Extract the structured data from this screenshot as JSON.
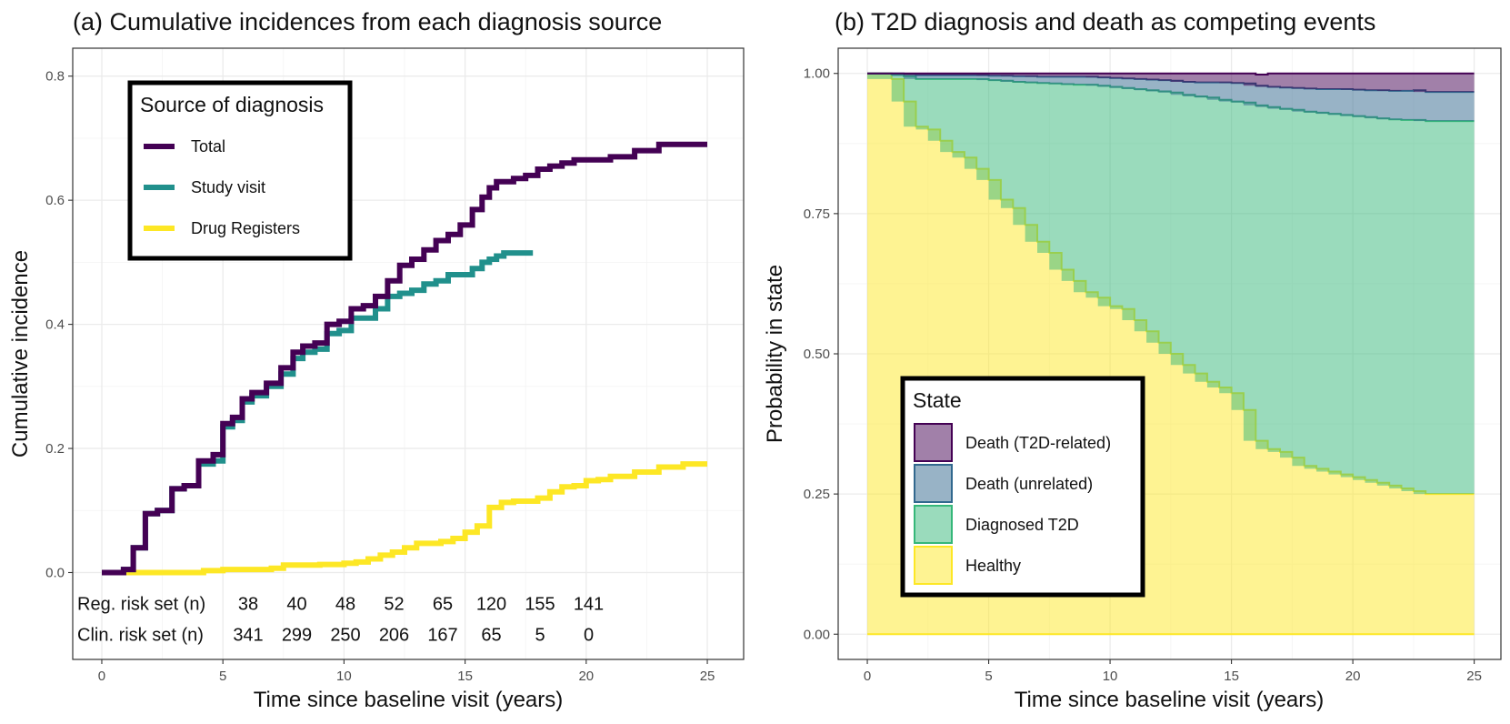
{
  "chart_data": [
    {
      "type": "line",
      "title": "(a) Cumulative incidences from each diagnosis source",
      "xlabel": "Time since baseline visit (years)",
      "ylabel": "Cumulative incidence",
      "xlim": [
        -1.2,
        26.5
      ],
      "ylim": [
        -0.14,
        0.845
      ],
      "xticks": [
        0,
        5,
        10,
        15,
        20,
        25
      ],
      "yticks": [
        0.0,
        0.2,
        0.4,
        0.6,
        0.8
      ],
      "ytick_labels": [
        "0.0",
        "0.2",
        "0.4",
        "0.6",
        "0.8"
      ],
      "grid": true,
      "legend": {
        "title": "Source of diagnosis",
        "position": "top-left"
      },
      "series": [
        {
          "name": "Total",
          "color": "#440154",
          "x": [
            0,
            0.5,
            0.9,
            1.3,
            1.8,
            2.3,
            2.9,
            3.4,
            4.0,
            4.6,
            5.0,
            5.4,
            5.8,
            6.2,
            6.8,
            7.4,
            7.9,
            8.3,
            8.8,
            9.3,
            9.8,
            10.3,
            10.8,
            11.3,
            11.8,
            12.3,
            12.8,
            13.3,
            13.8,
            14.3,
            14.8,
            15.3,
            15.7,
            16.0,
            16.3,
            16.6,
            17.0,
            17.5,
            18.0,
            18.5,
            19.0,
            19.5,
            20.0,
            21.0,
            22.0,
            23.0,
            24.0,
            25.0
          ],
          "y": [
            0.0,
            0.0,
            0.005,
            0.04,
            0.095,
            0.1,
            0.135,
            0.14,
            0.18,
            0.19,
            0.24,
            0.25,
            0.28,
            0.29,
            0.305,
            0.33,
            0.355,
            0.365,
            0.37,
            0.4,
            0.405,
            0.425,
            0.43,
            0.445,
            0.47,
            0.495,
            0.505,
            0.52,
            0.535,
            0.545,
            0.56,
            0.585,
            0.605,
            0.62,
            0.63,
            0.63,
            0.635,
            0.64,
            0.65,
            0.655,
            0.66,
            0.665,
            0.665,
            0.67,
            0.68,
            0.69,
            0.69,
            0.69
          ]
        },
        {
          "name": "Study visit",
          "color": "#21908C",
          "x": [
            0,
            0.5,
            0.9,
            1.3,
            1.8,
            2.3,
            2.9,
            3.4,
            4.0,
            4.6,
            5.0,
            5.4,
            5.8,
            6.2,
            6.8,
            7.4,
            7.9,
            8.3,
            8.8,
            9.3,
            9.8,
            10.3,
            10.8,
            11.3,
            11.8,
            12.3,
            12.8,
            13.3,
            13.8,
            14.3,
            14.8,
            15.3,
            15.7,
            16.0,
            16.3,
            16.6,
            17.0,
            17.8
          ],
          "y": [
            0.0,
            0.0,
            0.005,
            0.04,
            0.095,
            0.1,
            0.135,
            0.14,
            0.175,
            0.18,
            0.235,
            0.245,
            0.275,
            0.285,
            0.3,
            0.32,
            0.345,
            0.355,
            0.36,
            0.385,
            0.39,
            0.41,
            0.41,
            0.425,
            0.445,
            0.45,
            0.455,
            0.465,
            0.47,
            0.48,
            0.48,
            0.49,
            0.5,
            0.505,
            0.51,
            0.515,
            0.515,
            0.515
          ]
        },
        {
          "name": "Drug Registers",
          "color": "#FDE725",
          "x": [
            0,
            2.0,
            3.5,
            4.2,
            5.0,
            6.0,
            7.0,
            7.5,
            8.0,
            9.0,
            10.0,
            10.5,
            11.0,
            11.5,
            12.0,
            12.5,
            13.0,
            14.0,
            14.5,
            15.0,
            15.5,
            16.0,
            16.5,
            17.0,
            18.0,
            18.5,
            19.0,
            19.5,
            20.0,
            20.5,
            21.0,
            22.0,
            23.0,
            24.0,
            25.0
          ],
          "y": [
            0.0,
            0.0,
            0.0,
            0.003,
            0.005,
            0.005,
            0.007,
            0.012,
            0.012,
            0.013,
            0.015,
            0.017,
            0.022,
            0.028,
            0.033,
            0.04,
            0.047,
            0.05,
            0.055,
            0.065,
            0.075,
            0.105,
            0.113,
            0.115,
            0.12,
            0.13,
            0.138,
            0.14,
            0.148,
            0.15,
            0.155,
            0.162,
            0.17,
            0.175,
            0.175
          ]
        }
      ],
      "risk_table": {
        "rows": [
          {
            "label": "Reg. risk set (n)",
            "values": [
              "38",
              "40",
              "48",
              "52",
              "65",
              "120",
              "155",
              "141"
            ]
          },
          {
            "label": "Clin. risk set (n)",
            "values": [
              "341",
              "299",
              "250",
              "206",
              "167",
              "65",
              "5",
              "0"
            ]
          }
        ],
        "x": [
          6,
          8,
          10,
          12,
          14,
          16,
          18,
          20
        ]
      }
    },
    {
      "type": "area",
      "title": "(b) T2D diagnosis and death as competing events",
      "xlabel": "Time since baseline visit (years)",
      "ylabel": "Probability in state",
      "xlim": [
        -1.2,
        26.1
      ],
      "ylim": [
        -0.045,
        1.045
      ],
      "xticks": [
        0,
        5,
        10,
        15,
        20,
        25
      ],
      "yticks": [
        0.0,
        0.25,
        0.5,
        0.75,
        1.0
      ],
      "ytick_labels": [
        "0.00",
        "0.25",
        "0.50",
        "0.75",
        "1.00"
      ],
      "grid": true,
      "legend": {
        "title": "State",
        "position": "bottom-left"
      },
      "x": [
        0,
        1,
        1.5,
        2,
        2.5,
        3,
        3.5,
        4,
        4.5,
        5,
        5.5,
        6,
        6.5,
        7,
        7.5,
        8,
        8.5,
        9,
        9.5,
        10,
        10.5,
        11,
        11.5,
        12,
        12.5,
        13,
        13.5,
        14,
        14.5,
        15,
        15.5,
        16,
        16.5,
        17,
        17.5,
        18,
        18.5,
        19,
        19.5,
        20,
        20.5,
        21,
        21.5,
        22,
        22.5,
        23,
        24,
        25
      ],
      "series": [
        {
          "name": "Healthy",
          "color": "#FDE725",
          "values": [
            1.0,
            0.99,
            0.95,
            0.905,
            0.9,
            0.88,
            0.86,
            0.85,
            0.83,
            0.81,
            0.775,
            0.76,
            0.73,
            0.7,
            0.68,
            0.65,
            0.63,
            0.61,
            0.6,
            0.585,
            0.58,
            0.56,
            0.54,
            0.52,
            0.5,
            0.48,
            0.465,
            0.45,
            0.44,
            0.43,
            0.4,
            0.345,
            0.33,
            0.325,
            0.315,
            0.3,
            0.295,
            0.29,
            0.285,
            0.28,
            0.275,
            0.27,
            0.265,
            0.26,
            0.255,
            0.25,
            0.25,
            0.25
          ]
        },
        {
          "name": "Diagnosed T2D",
          "color": "#35B779",
          "values": [
            0.0,
            0.008,
            0.045,
            0.085,
            0.09,
            0.11,
            0.13,
            0.14,
            0.16,
            0.178,
            0.212,
            0.225,
            0.254,
            0.283,
            0.302,
            0.331,
            0.35,
            0.37,
            0.378,
            0.391,
            0.394,
            0.412,
            0.43,
            0.448,
            0.466,
            0.482,
            0.494,
            0.507,
            0.513,
            0.52,
            0.548,
            0.598,
            0.61,
            0.612,
            0.62,
            0.632,
            0.635,
            0.638,
            0.641,
            0.644,
            0.647,
            0.65,
            0.653,
            0.657,
            0.662,
            0.665,
            0.665,
            0.665
          ]
        },
        {
          "name": "Death (unrelated)",
          "color": "#31688E",
          "values": [
            0.0,
            0.002,
            0.004,
            0.007,
            0.007,
            0.007,
            0.007,
            0.007,
            0.007,
            0.008,
            0.009,
            0.01,
            0.011,
            0.011,
            0.012,
            0.013,
            0.014,
            0.014,
            0.015,
            0.016,
            0.017,
            0.018,
            0.019,
            0.02,
            0.021,
            0.023,
            0.025,
            0.027,
            0.031,
            0.033,
            0.034,
            0.035,
            0.036,
            0.038,
            0.039,
            0.041,
            0.042,
            0.044,
            0.046,
            0.047,
            0.048,
            0.05,
            0.051,
            0.052,
            0.053,
            0.052,
            0.052,
            0.052
          ]
        },
        {
          "name": "Death (T2D-related)",
          "color": "#440154",
          "values": [
            0.0,
            0.0,
            0.001,
            0.003,
            0.003,
            0.003,
            0.003,
            0.003,
            0.003,
            0.004,
            0.004,
            0.005,
            0.005,
            0.006,
            0.006,
            0.006,
            0.006,
            0.006,
            0.007,
            0.008,
            0.009,
            0.01,
            0.011,
            0.012,
            0.013,
            0.015,
            0.016,
            0.016,
            0.016,
            0.017,
            0.018,
            0.02,
            0.024,
            0.025,
            0.026,
            0.027,
            0.028,
            0.028,
            0.028,
            0.029,
            0.03,
            0.03,
            0.031,
            0.031,
            0.03,
            0.033,
            0.033,
            0.033
          ]
        }
      ]
    }
  ]
}
